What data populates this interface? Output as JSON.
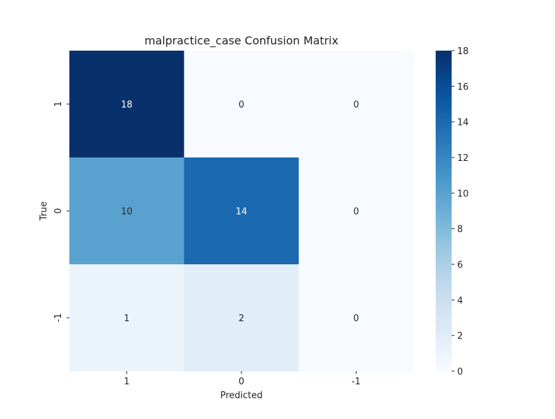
{
  "chart_data": {
    "type": "heatmap",
    "title": "malpractice_case Confusion Matrix",
    "xlabel": "Predicted",
    "ylabel": "True",
    "x_categories": [
      "1",
      "0",
      "-1"
    ],
    "y_categories": [
      "1",
      "0",
      "-1"
    ],
    "values": [
      [
        18,
        0,
        0
      ],
      [
        10,
        14,
        0
      ],
      [
        1,
        2,
        0
      ]
    ],
    "colorbar": {
      "min": 0,
      "max": 18,
      "ticks": [
        "0",
        "2",
        "4",
        "6",
        "8",
        "10",
        "12",
        "14",
        "16",
        "18"
      ]
    },
    "colormap": "Blues"
  }
}
